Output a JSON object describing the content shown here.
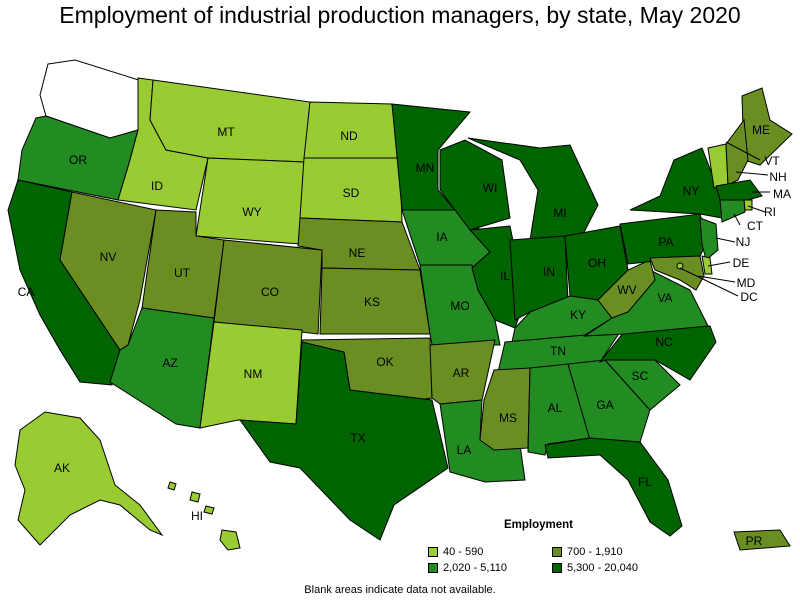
{
  "title": "Employment of industrial production managers, by state, May 2020",
  "note": "Blank areas indicate data not available.",
  "legend": {
    "title": "Employment",
    "items": [
      {
        "label": "40 - 590",
        "color": "#99cc33"
      },
      {
        "label": "700 - 1,910",
        "color": "#6b8e23"
      },
      {
        "label": "2,020 - 5,110",
        "color": "#228b22"
      },
      {
        "label": "5,300 - 20,040",
        "color": "#006400"
      }
    ]
  },
  "colors": {
    "na": "#ffffff"
  },
  "states": [
    {
      "code": "WA",
      "label": "",
      "bin": "na"
    },
    {
      "code": "OR",
      "label": "OR",
      "bin": 2
    },
    {
      "code": "CA",
      "label": "CA",
      "bin": 3
    },
    {
      "code": "ID",
      "label": "ID",
      "bin": 0
    },
    {
      "code": "NV",
      "label": "NV",
      "bin": 1
    },
    {
      "code": "MT",
      "label": "MT",
      "bin": 0
    },
    {
      "code": "WY",
      "label": "WY",
      "bin": 0
    },
    {
      "code": "UT",
      "label": "UT",
      "bin": 1
    },
    {
      "code": "AZ",
      "label": "AZ",
      "bin": 2
    },
    {
      "code": "CO",
      "label": "CO",
      "bin": 1
    },
    {
      "code": "NM",
      "label": "NM",
      "bin": 0
    },
    {
      "code": "ND",
      "label": "ND",
      "bin": 0
    },
    {
      "code": "SD",
      "label": "SD",
      "bin": 0
    },
    {
      "code": "NE",
      "label": "NE",
      "bin": 1
    },
    {
      "code": "KS",
      "label": "KS",
      "bin": 1
    },
    {
      "code": "OK",
      "label": "OK",
      "bin": 1
    },
    {
      "code": "TX",
      "label": "TX",
      "bin": 3
    },
    {
      "code": "MN",
      "label": "MN",
      "bin": 3
    },
    {
      "code": "IA",
      "label": "IA",
      "bin": 2
    },
    {
      "code": "MO",
      "label": "MO",
      "bin": 2
    },
    {
      "code": "AR",
      "label": "AR",
      "bin": 1
    },
    {
      "code": "LA",
      "label": "LA",
      "bin": 2
    },
    {
      "code": "WI",
      "label": "WI",
      "bin": 3
    },
    {
      "code": "IL",
      "label": "IL",
      "bin": 3
    },
    {
      "code": "MI",
      "label": "MI",
      "bin": 3
    },
    {
      "code": "IN",
      "label": "IN",
      "bin": 3
    },
    {
      "code": "OH",
      "label": "OH",
      "bin": 3
    },
    {
      "code": "KY",
      "label": "KY",
      "bin": 2
    },
    {
      "code": "TN",
      "label": "TN",
      "bin": 2
    },
    {
      "code": "MS",
      "label": "MS",
      "bin": 1
    },
    {
      "code": "AL",
      "label": "AL",
      "bin": 2
    },
    {
      "code": "GA",
      "label": "GA",
      "bin": 2
    },
    {
      "code": "FL",
      "label": "FL",
      "bin": 3
    },
    {
      "code": "SC",
      "label": "SC",
      "bin": 2
    },
    {
      "code": "NC",
      "label": "NC",
      "bin": 3
    },
    {
      "code": "VA",
      "label": "VA",
      "bin": 2
    },
    {
      "code": "WV",
      "label": "WV",
      "bin": 1
    },
    {
      "code": "PA",
      "label": "PA",
      "bin": 3
    },
    {
      "code": "NY",
      "label": "NY",
      "bin": 3
    },
    {
      "code": "ME",
      "label": "ME",
      "bin": 1
    },
    {
      "code": "VT",
      "label": "VT",
      "bin": 0
    },
    {
      "code": "NH",
      "label": "NH",
      "bin": 1
    },
    {
      "code": "MA",
      "label": "MA",
      "bin": 3
    },
    {
      "code": "RI",
      "label": "RI",
      "bin": 0
    },
    {
      "code": "CT",
      "label": "CT",
      "bin": 2
    },
    {
      "code": "NJ",
      "label": "NJ",
      "bin": 2
    },
    {
      "code": "DE",
      "label": "DE",
      "bin": 0
    },
    {
      "code": "MD",
      "label": "MD",
      "bin": 1
    },
    {
      "code": "DC",
      "label": "DC",
      "bin": 0
    },
    {
      "code": "AK",
      "label": "AK",
      "bin": 0
    },
    {
      "code": "HI",
      "label": "HI",
      "bin": 0
    },
    {
      "code": "PR",
      "label": "PR",
      "bin": 1
    }
  ]
}
